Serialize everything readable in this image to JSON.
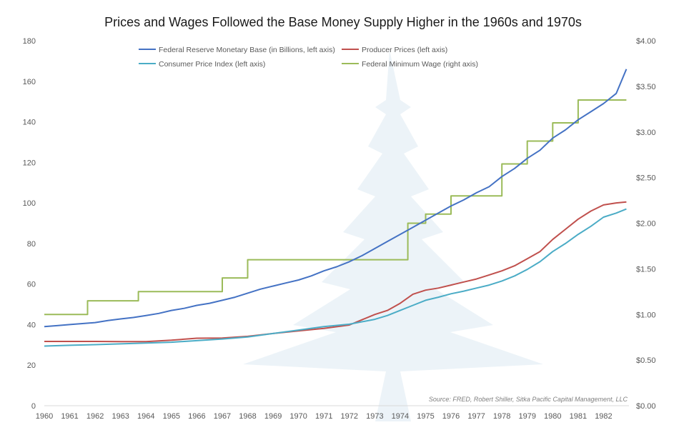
{
  "chart_data": {
    "type": "line",
    "title": "Prices and Wages Followed the Base Money Supply Higher in the 1960s and 1970s",
    "source": "Source: FRED, Robert Shiller, Sitka Pacific Capital Management, LLC",
    "x_tick_labels": [
      "1960",
      "1961",
      "1962",
      "1963",
      "1964",
      "1965",
      "1966",
      "1967",
      "1968",
      "1969",
      "1970",
      "1971",
      "1972",
      "1973",
      "1974",
      "1975",
      "1976",
      "1977",
      "1978",
      "1979",
      "1980",
      "1981",
      "1982"
    ],
    "xlim": [
      1960,
      1983
    ],
    "left_axis": {
      "ylim": [
        0,
        180
      ],
      "tick_labels": [
        "0",
        "20",
        "40",
        "60",
        "80",
        "100",
        "120",
        "140",
        "160",
        "180"
      ],
      "tick_values": [
        0,
        20,
        40,
        60,
        80,
        100,
        120,
        140,
        160,
        180
      ]
    },
    "right_axis": {
      "ylim": [
        0,
        4.0
      ],
      "tick_labels": [
        "$0.00",
        "$0.50",
        "$1.00",
        "$1.50",
        "$2.00",
        "$2.50",
        "$3.00",
        "$3.50",
        "$4.00"
      ],
      "tick_values": [
        0,
        0.5,
        1.0,
        1.5,
        2.0,
        2.5,
        3.0,
        3.5,
        4.0
      ]
    },
    "series": [
      {
        "name": "Federal Reserve Monetary Base (in Billions, left axis)",
        "axis": "left",
        "color": "#4472c4",
        "x": [
          1960,
          1960.5,
          1961,
          1961.5,
          1962,
          1962.5,
          1963,
          1963.5,
          1964,
          1964.5,
          1965,
          1965.5,
          1966,
          1966.5,
          1967,
          1967.5,
          1968,
          1968.5,
          1969,
          1969.5,
          1970,
          1970.5,
          1971,
          1971.5,
          1972,
          1972.5,
          1973,
          1973.5,
          1974,
          1974.5,
          1975,
          1975.5,
          1976,
          1976.5,
          1977,
          1977.5,
          1978,
          1978.5,
          1979,
          1979.5,
          1980,
          1980.5,
          1981,
          1981.5,
          1982,
          1982.5,
          1982.9
        ],
        "y": [
          39,
          39.5,
          40,
          40.5,
          41,
          42,
          42.8,
          43.5,
          44.5,
          45.5,
          47,
          48,
          49.5,
          50.5,
          52,
          53.5,
          55.5,
          57.5,
          59,
          60.5,
          62,
          64,
          66.5,
          68.5,
          71,
          74,
          77.5,
          81,
          84.5,
          88,
          91.5,
          95,
          98.5,
          101.5,
          105,
          108,
          113,
          117,
          122,
          126,
          132,
          136,
          141,
          145,
          149,
          154,
          166
        ]
      },
      {
        "name": "Producer Prices (left axis)",
        "axis": "left",
        "color": "#c0504d",
        "x": [
          1960,
          1961,
          1962,
          1963,
          1964,
          1965,
          1966,
          1967,
          1968,
          1969,
          1970,
          1971,
          1972,
          1973,
          1973.5,
          1974,
          1974.5,
          1975,
          1975.5,
          1976,
          1976.5,
          1977,
          1977.5,
          1978,
          1978.5,
          1979,
          1979.5,
          1980,
          1980.5,
          1981,
          1981.5,
          1982,
          1982.5,
          1982.9
        ],
        "y": [
          31.7,
          31.7,
          31.7,
          31.6,
          31.6,
          32.3,
          33.3,
          33.4,
          34.2,
          35.6,
          36.9,
          38.1,
          39.8,
          45.0,
          47,
          50.5,
          55,
          57,
          58,
          59.5,
          61,
          62.5,
          64.5,
          66.5,
          69,
          72.5,
          76,
          82,
          87,
          92,
          96,
          99.0,
          100,
          100.5
        ]
      },
      {
        "name": "Consumer Price Index (left axis)",
        "axis": "left",
        "color": "#4bacc6",
        "x": [
          1960,
          1961,
          1962,
          1963,
          1964,
          1965,
          1966,
          1967,
          1968,
          1969,
          1970,
          1971,
          1972,
          1973,
          1973.5,
          1974,
          1974.5,
          1975,
          1975.5,
          1976,
          1976.5,
          1977,
          1977.5,
          1978,
          1978.5,
          1979,
          1979.5,
          1980,
          1980.5,
          1981,
          1981.5,
          1982,
          1982.5,
          1982.9
        ],
        "y": [
          29.4,
          29.8,
          30.1,
          30.5,
          30.9,
          31.3,
          32.1,
          32.9,
          33.9,
          35.6,
          37.3,
          39.0,
          40.2,
          42.6,
          44.5,
          47,
          49.5,
          52,
          53.5,
          55.2,
          56.5,
          58.0,
          59.5,
          61.5,
          64,
          67.2,
          71,
          76,
          80,
          84.5,
          88.5,
          93,
          95,
          97
        ]
      },
      {
        "name": "Federal Minimum Wage (right axis)",
        "axis": "right",
        "color": "#9bbb59",
        "step": true,
        "x": [
          1960,
          1961.7,
          1963.7,
          1967,
          1968,
          1974.3,
          1975,
          1976,
          1978,
          1979,
          1980,
          1981,
          1982.9
        ],
        "y": [
          1.0,
          1.15,
          1.25,
          1.4,
          1.6,
          2.0,
          2.1,
          2.3,
          2.65,
          2.9,
          3.1,
          3.35,
          3.35
        ]
      }
    ]
  }
}
